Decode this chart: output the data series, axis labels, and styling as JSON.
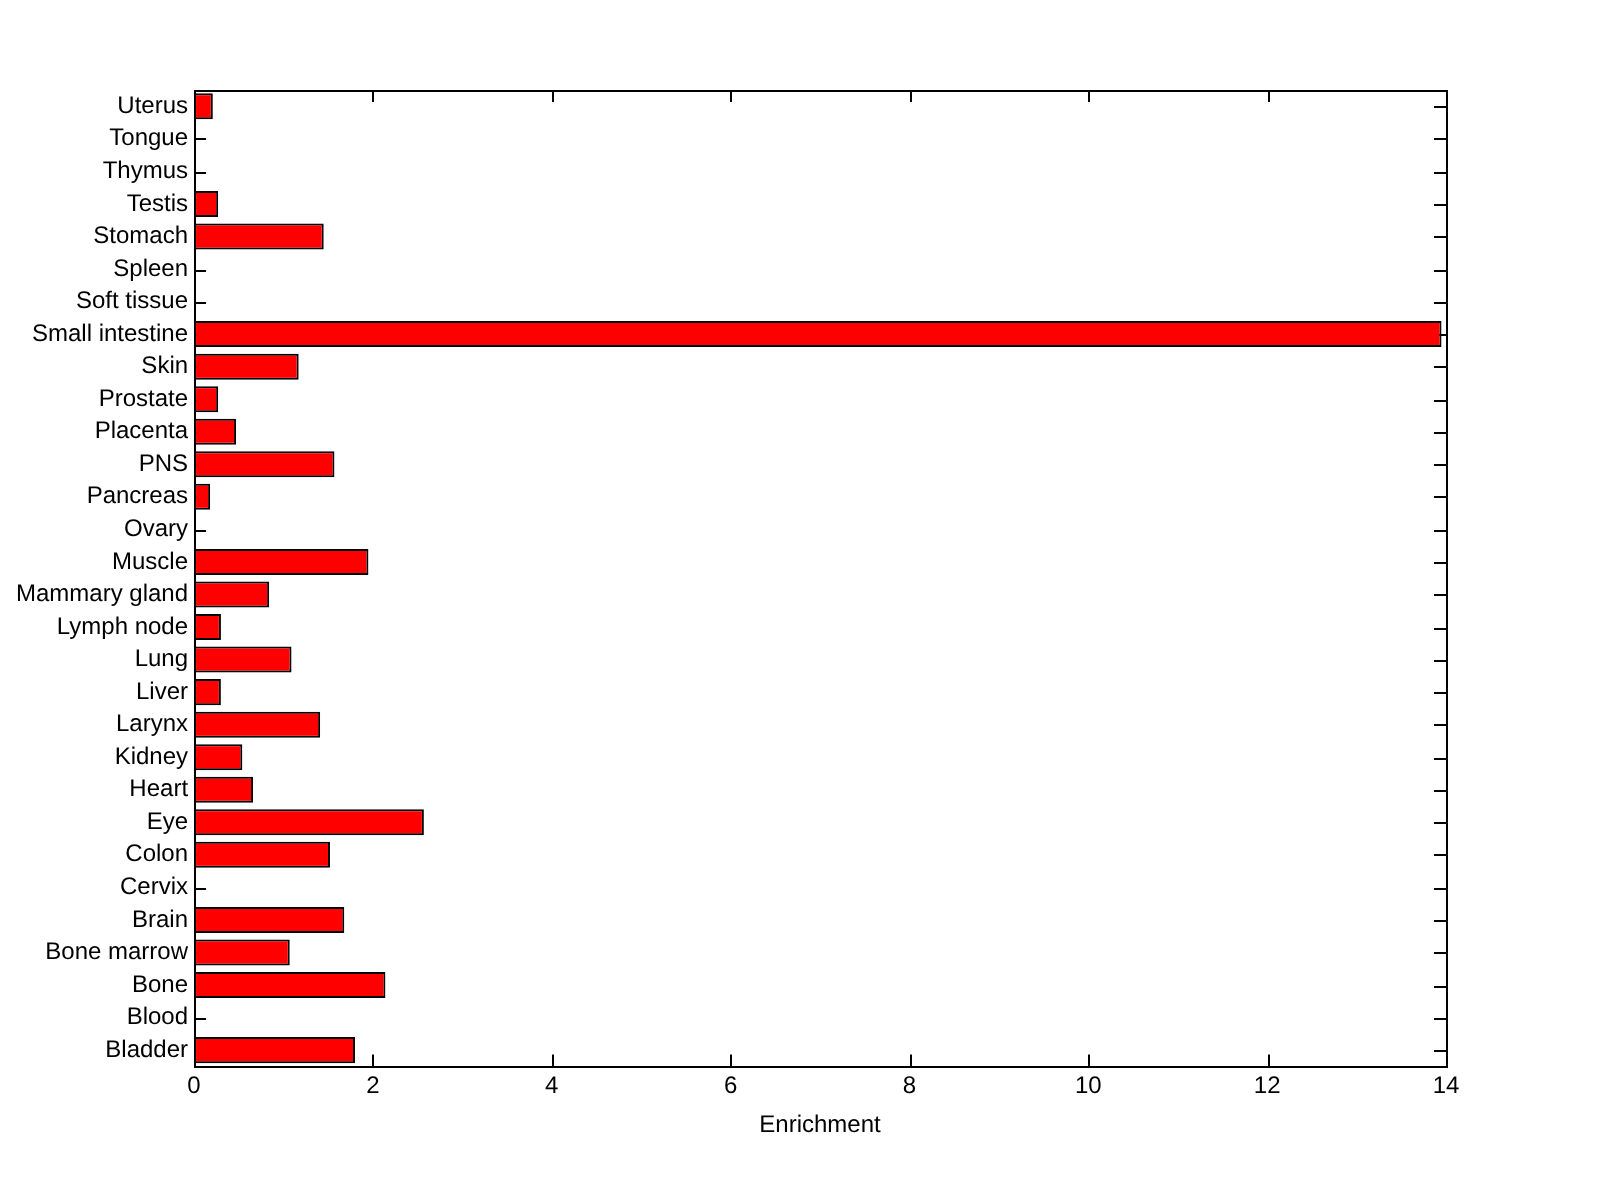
{
  "chart_data": {
    "type": "bar",
    "orientation": "horizontal",
    "xlabel": "Enrichment",
    "categories": [
      "Uterus",
      "Tongue",
      "Thymus",
      "Testis",
      "Stomach",
      "Spleen",
      "Soft tissue",
      "Small intestine",
      "Skin",
      "Prostate",
      "Placenta",
      "PNS",
      "Pancreas",
      "Ovary",
      "Muscle",
      "Mammary gland",
      "Lymph node",
      "Lung",
      "Liver",
      "Larynx",
      "Kidney",
      "Heart",
      "Eye",
      "Colon",
      "Cervix",
      "Brain",
      "Bone marrow",
      "Bone",
      "Blood",
      "Bladder"
    ],
    "values": [
      0.21,
      0,
      0,
      0.27,
      1.45,
      0,
      0,
      13.95,
      1.17,
      0.27,
      0.47,
      1.57,
      0.18,
      0,
      1.95,
      0.84,
      0.3,
      1.09,
      0.3,
      1.41,
      0.54,
      0.66,
      2.57,
      1.52,
      0,
      1.68,
      1.07,
      2.14,
      0,
      1.8
    ],
    "color": "#ff0000",
    "xlim": [
      0,
      14
    ],
    "xticks": [
      0,
      2,
      4,
      6,
      8,
      10,
      12,
      14
    ],
    "grid": false,
    "legend": false
  }
}
